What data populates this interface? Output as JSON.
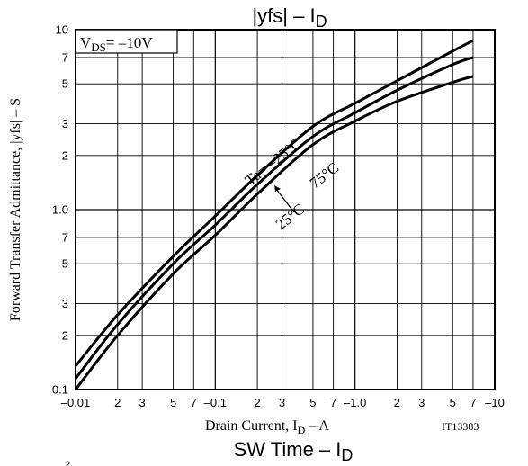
{
  "chart_data": {
    "type": "line",
    "title": "|yfs|  –  I",
    "title_sub": "D",
    "condition_label": "V",
    "condition_sub": "DS",
    "condition_value": "= –10V",
    "xlabel": "Drain Current, I",
    "xlabel_sub": "D",
    "xlabel_tail": "  –  A",
    "ylabel": "Forward Transfer Admittance, |yfs|  –  S",
    "code": "IT13383",
    "next_title": "SW Time  –  I",
    "next_title_sub": "D",
    "next_fragment": "2",
    "x_scale": "log",
    "y_scale": "log",
    "xlim": [
      -0.01,
      -10
    ],
    "ylim": [
      0.1,
      10
    ],
    "grid": true,
    "x_ticks": [
      {
        "label": "–0.01"
      },
      {
        "label": "2"
      },
      {
        "label": "3"
      },
      {
        "label": "5"
      },
      {
        "label": "7"
      },
      {
        "label": "–0.1"
      },
      {
        "label": "2"
      },
      {
        "label": "3"
      },
      {
        "label": "5"
      },
      {
        "label": "7"
      },
      {
        "label": "–1.0"
      },
      {
        "label": "2"
      },
      {
        "label": "3"
      },
      {
        "label": "5"
      },
      {
        "label": "7"
      },
      {
        "label": "–10"
      }
    ],
    "y_ticks": [
      {
        "label": "0.1"
      },
      {
        "label": "2"
      },
      {
        "label": "3"
      },
      {
        "label": "5"
      },
      {
        "label": "7"
      },
      {
        "label": "1.0"
      },
      {
        "label": "2"
      },
      {
        "label": "3"
      },
      {
        "label": "5"
      },
      {
        "label": "7"
      },
      {
        "label": "10"
      }
    ],
    "series": [
      {
        "name": "Ta= –25°C",
        "x": [
          -0.01,
          -0.02,
          -0.05,
          -0.1,
          -0.2,
          -0.5,
          -1.0,
          -2,
          -5,
          -7
        ],
        "y": [
          0.135,
          0.26,
          0.55,
          0.92,
          1.55,
          2.9,
          3.9,
          5.2,
          7.6,
          8.7
        ]
      },
      {
        "name": "25°C",
        "x": [
          -0.01,
          -0.02,
          -0.05,
          -0.1,
          -0.2,
          -0.5,
          -1.0,
          -2,
          -5,
          -7
        ],
        "y": [
          0.115,
          0.23,
          0.5,
          0.82,
          1.38,
          2.55,
          3.45,
          4.6,
          6.4,
          7.0
        ]
      },
      {
        "name": "75°C",
        "x": [
          -0.01,
          -0.02,
          -0.05,
          -0.1,
          -0.2,
          -0.5,
          -1.0,
          -2,
          -5,
          -7
        ],
        "y": [
          0.1,
          0.2,
          0.44,
          0.72,
          1.22,
          2.3,
          3.1,
          4.0,
          5.1,
          5.5
        ]
      }
    ]
  }
}
